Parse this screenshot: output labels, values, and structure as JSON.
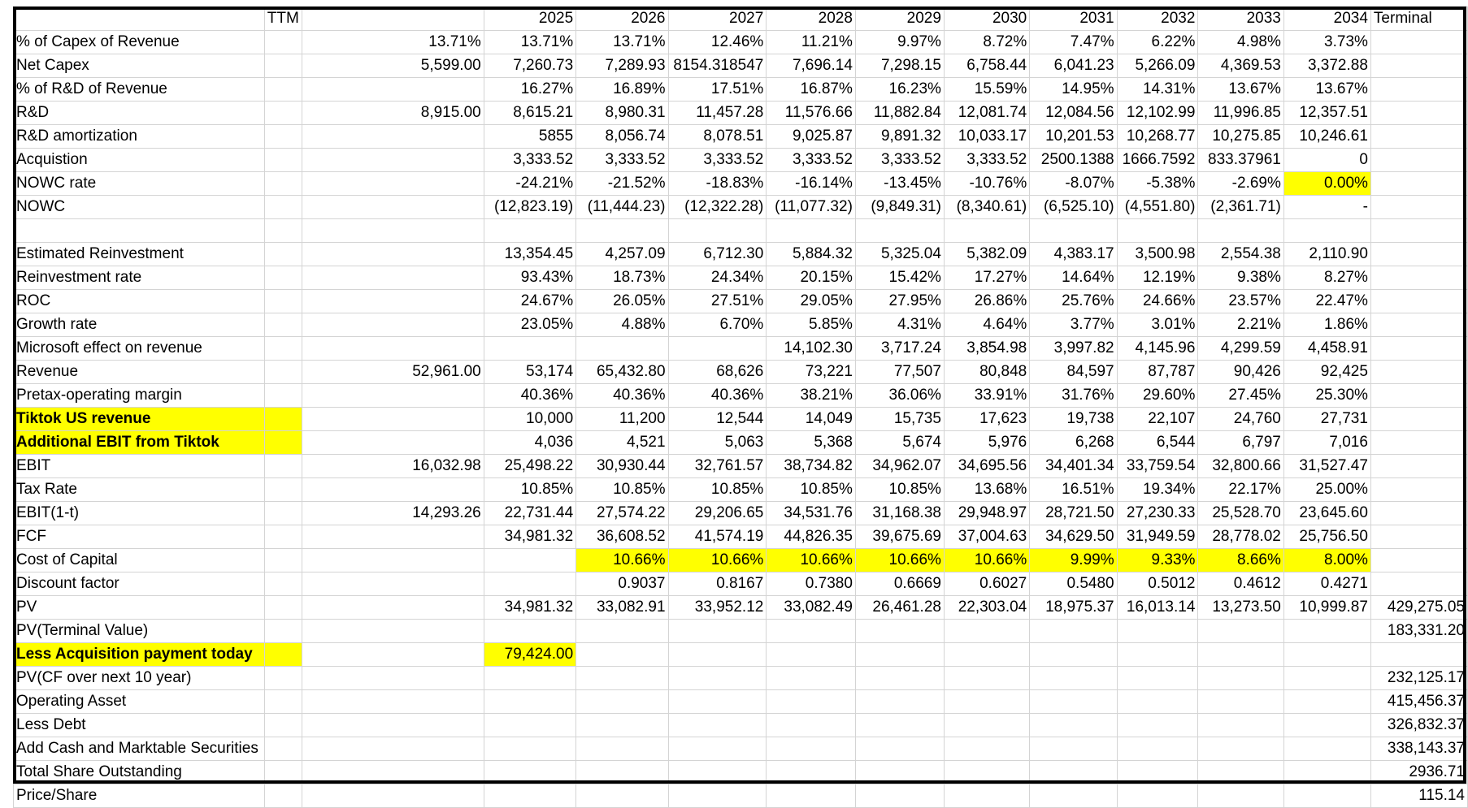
{
  "columns": [
    "",
    "TTM",
    "",
    "2025",
    "2026",
    "2027",
    "2028",
    "2029",
    "2030",
    "2031",
    "2032",
    "2033",
    "2034",
    "Terminal"
  ],
  "highlight_color": "#ffff00",
  "rows": [
    {
      "label": "% of Capex of Revenue",
      "c": [
        "",
        "13.71%",
        "13.71%",
        "13.71%",
        "12.46%",
        "11.21%",
        "9.97%",
        "8.72%",
        "7.47%",
        "6.22%",
        "4.98%",
        "3.73%",
        ""
      ]
    },
    {
      "label": "Net Capex",
      "c": [
        "",
        "5,599.00",
        "7,260.73",
        "7,289.93",
        "8154.318547",
        "7,696.14",
        "7,298.15",
        "6,758.44",
        "6,041.23",
        "5,266.09",
        "4,369.53",
        "3,372.88",
        ""
      ]
    },
    {
      "label": "% of R&D of Revenue",
      "c": [
        "",
        "",
        "16.27%",
        "16.89%",
        "17.51%",
        "16.87%",
        "16.23%",
        "15.59%",
        "14.95%",
        "14.31%",
        "13.67%",
        "13.67%",
        ""
      ]
    },
    {
      "label": "R&D",
      "c": [
        "",
        "8,915.00",
        "8,615.21",
        "8,980.31",
        "11,457.28",
        "11,576.66",
        "11,882.84",
        "12,081.74",
        "12,084.56",
        "12,102.99",
        "11,996.85",
        "12,357.51",
        ""
      ]
    },
    {
      "label": "R&D amortization",
      "c": [
        "",
        "",
        "5855",
        "8,056.74",
        "8,078.51",
        "9,025.87",
        "9,891.32",
        "10,033.17",
        "10,201.53",
        "10,268.77",
        "10,275.85",
        "10,246.61",
        ""
      ]
    },
    {
      "label": "Acquistion",
      "c": [
        "",
        "",
        "3,333.52",
        "3,333.52",
        "3,333.52",
        "3,333.52",
        "3,333.52",
        "3,333.52",
        "2500.1388",
        "1666.7592",
        "833.37961",
        "0",
        ""
      ]
    },
    {
      "label": "NOWC rate",
      "c": [
        "",
        "",
        "-24.21%",
        "-21.52%",
        "-18.83%",
        "-16.14%",
        "-13.45%",
        "-10.76%",
        "-8.07%",
        "-5.38%",
        "-2.69%",
        "0.00%",
        ""
      ],
      "hl": [
        11
      ]
    },
    {
      "label": "NOWC",
      "c": [
        "",
        "",
        "(12,823.19)",
        "(11,444.23)",
        "(12,322.28)",
        "(11,077.32)",
        "(9,849.31)",
        "(8,340.61)",
        "(6,525.10)",
        "(4,551.80)",
        "(2,361.71)",
        "-",
        ""
      ]
    },
    {
      "label": "",
      "c": [
        "",
        "",
        "",
        "",
        "",
        "",
        "",
        "",
        "",
        "",
        "",
        "",
        ""
      ]
    },
    {
      "label": "Estimated Reinvestment",
      "c": [
        "",
        "",
        "13,354.45",
        "4,257.09",
        "6,712.30",
        "5,884.32",
        "5,325.04",
        "5,382.09",
        "4,383.17",
        "3,500.98",
        "2,554.38",
        "2,110.90",
        ""
      ]
    },
    {
      "label": "Reinvestment rate",
      "c": [
        "",
        "",
        "93.43%",
        "18.73%",
        "24.34%",
        "20.15%",
        "15.42%",
        "17.27%",
        "14.64%",
        "12.19%",
        "9.38%",
        "8.27%",
        ""
      ]
    },
    {
      "label": "ROC",
      "c": [
        "",
        "",
        "24.67%",
        "26.05%",
        "27.51%",
        "29.05%",
        "27.95%",
        "26.86%",
        "25.76%",
        "24.66%",
        "23.57%",
        "22.47%",
        ""
      ]
    },
    {
      "label": "Growth rate",
      "c": [
        "",
        "",
        "23.05%",
        "4.88%",
        "6.70%",
        "5.85%",
        "4.31%",
        "4.64%",
        "3.77%",
        "3.01%",
        "2.21%",
        "1.86%",
        ""
      ]
    },
    {
      "label": "Microsoft effect on revenue",
      "c": [
        "",
        "",
        "",
        "",
        "",
        "14,102.30",
        "3,717.24",
        "3,854.98",
        "3,997.82",
        "4,145.96",
        "4,299.59",
        "4,458.91",
        ""
      ]
    },
    {
      "label": "Revenue",
      "c": [
        "",
        "52,961.00",
        "53,174",
        "65,432.80",
        "68,626",
        "73,221",
        "77,507",
        "80,848",
        "84,597",
        "87,787",
        "90,426",
        "92,425",
        ""
      ]
    },
    {
      "label": "Pretax-operating margin",
      "c": [
        "",
        "",
        "40.36%",
        "40.36%",
        "40.36%",
        "38.21%",
        "36.06%",
        "33.91%",
        "31.76%",
        "29.60%",
        "27.45%",
        "25.30%",
        ""
      ]
    },
    {
      "label": "Tiktok US revenue",
      "bold": true,
      "c": [
        "",
        "",
        "10,000",
        "11,200",
        "12,544",
        "14,049",
        "15,735",
        "17,623",
        "19,738",
        "22,107",
        "24,760",
        "27,731",
        ""
      ],
      "hl": [
        -1,
        0
      ]
    },
    {
      "label": "Additional EBIT from Tiktok",
      "bold": true,
      "c": [
        "",
        "",
        "4,036",
        "4,521",
        "5,063",
        "5,368",
        "5,674",
        "5,976",
        "6,268",
        "6,544",
        "6,797",
        "7,016",
        ""
      ],
      "hl": [
        -1,
        0
      ]
    },
    {
      "label": "EBIT",
      "c": [
        "",
        "16,032.98",
        "25,498.22",
        "30,930.44",
        "32,761.57",
        "38,734.82",
        "34,962.07",
        "34,695.56",
        "34,401.34",
        "33,759.54",
        "32,800.66",
        "31,527.47",
        ""
      ]
    },
    {
      "label": "Tax Rate",
      "c": [
        "",
        "",
        "10.85%",
        "10.85%",
        "10.85%",
        "10.85%",
        "10.85%",
        "13.68%",
        "16.51%",
        "19.34%",
        "22.17%",
        "25.00%",
        ""
      ]
    },
    {
      "label": "EBIT(1-t)",
      "c": [
        "",
        "14,293.26",
        "22,731.44",
        "27,574.22",
        "29,206.65",
        "34,531.76",
        "31,168.38",
        "29,948.97",
        "28,721.50",
        "27,230.33",
        "25,528.70",
        "23,645.60",
        ""
      ]
    },
    {
      "label": "FCF",
      "c": [
        "",
        "",
        "34,981.32",
        "36,608.52",
        "41,574.19",
        "44,826.35",
        "39,675.69",
        "37,004.63",
        "34,629.50",
        "31,949.59",
        "28,778.02",
        "25,756.50",
        ""
      ]
    },
    {
      "label": "Cost of Capital",
      "c": [
        "",
        "",
        "",
        "10.66%",
        "10.66%",
        "10.66%",
        "10.66%",
        "10.66%",
        "9.99%",
        "9.33%",
        "8.66%",
        "8.00%",
        ""
      ],
      "hl": [
        3,
        4,
        5,
        6,
        7,
        8,
        9,
        10,
        11
      ]
    },
    {
      "label": "Discount factor",
      "c": [
        "",
        "",
        "",
        "0.9037",
        "0.8167",
        "0.7380",
        "0.6669",
        "0.6027",
        "0.5480",
        "0.5012",
        "0.4612",
        "0.4271",
        ""
      ]
    },
    {
      "label": "PV",
      "c": [
        "",
        "",
        "34,981.32",
        "33,082.91",
        "33,952.12",
        "33,082.49",
        "26,461.28",
        "22,303.04",
        "18,975.37",
        "16,013.14",
        "13,273.50",
        "10,999.87",
        "429,275.05"
      ]
    },
    {
      "label": "PV(Terminal Value)",
      "c": [
        "",
        "",
        "",
        "",
        "",
        "",
        "",
        "",
        "",
        "",
        "",
        "",
        "183,331.20"
      ]
    },
    {
      "label": "Less Acquisition payment today",
      "bold": true,
      "c": [
        "",
        "",
        "79,424.00",
        "",
        "",
        "",
        "",
        "",
        "",
        "",
        "",
        "",
        ""
      ],
      "hl": [
        -1,
        0,
        2
      ]
    },
    {
      "label": "PV(CF over next 10 year)",
      "c": [
        "",
        "",
        "",
        "",
        "",
        "",
        "",
        "",
        "",
        "",
        "",
        "",
        "232,125.17"
      ]
    },
    {
      "label": "Operating Asset",
      "c": [
        "",
        "",
        "",
        "",
        "",
        "",
        "",
        "",
        "",
        "",
        "",
        "",
        "415,456.37"
      ]
    },
    {
      "label": "Less Debt",
      "c": [
        "",
        "",
        "",
        "",
        "",
        "",
        "",
        "",
        "",
        "",
        "",
        "",
        "326,832.37"
      ]
    },
    {
      "label": "Add Cash and Marktable Securities",
      "c": [
        "",
        "",
        "",
        "",
        "",
        "",
        "",
        "",
        "",
        "",
        "",
        "",
        "338,143.37"
      ]
    },
    {
      "label": "Total Share Outstanding",
      "c": [
        "",
        "",
        "",
        "",
        "",
        "",
        "",
        "",
        "",
        "",
        "",
        "",
        "2936.71"
      ]
    },
    {
      "label": "Price/Share",
      "c": [
        "",
        "",
        "",
        "",
        "",
        "",
        "",
        "",
        "",
        "",
        "",
        "",
        "115.14"
      ]
    }
  ]
}
